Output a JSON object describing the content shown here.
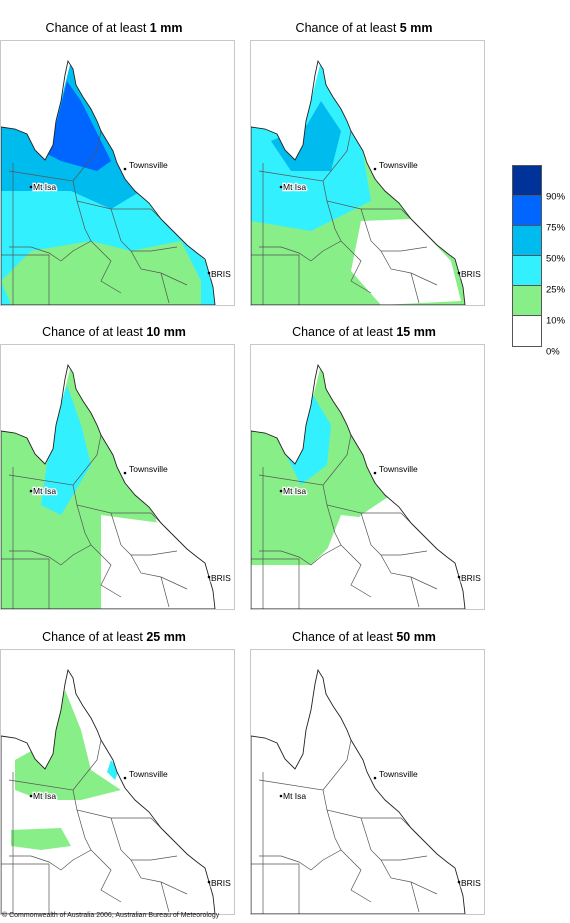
{
  "panels": [
    {
      "title_prefix": "Chance of at least ",
      "amount": "1 mm",
      "level": 5
    },
    {
      "title_prefix": "Chance of at least ",
      "amount": "5 mm",
      "level": 4
    },
    {
      "title_prefix": "Chance of at least ",
      "amount": "10 mm",
      "level": 3
    },
    {
      "title_prefix": "Chance of at least ",
      "amount": "15 mm",
      "level": 2
    },
    {
      "title_prefix": "Chance of at least ",
      "amount": "25 mm",
      "level": 1
    },
    {
      "title_prefix": "Chance of at least ",
      "amount": "50 mm",
      "level": 0
    }
  ],
  "places": {
    "townsville": "Townsville",
    "mt_isa": "Mt Isa",
    "bris": "BRIS"
  },
  "legend": {
    "colors": [
      "#003399",
      "#0066ff",
      "#00bbee",
      "#33f0ff",
      "#88ee88",
      "#ffffff"
    ],
    "labels": [
      "90%",
      "75%",
      "50%",
      "25%",
      "10%",
      "0%"
    ]
  },
  "copyright": "© Commonwealth of Australia 2006, Australian Bureau of Meteorology"
}
